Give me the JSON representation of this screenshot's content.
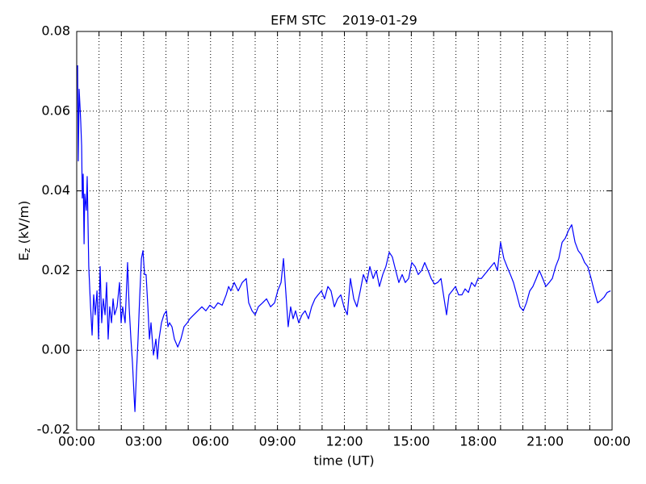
{
  "chart_data": {
    "type": "line",
    "title": "EFM STC    2019-01-29",
    "xlabel": "time (UT)",
    "ylabel": {
      "base": "E",
      "subscript": "z",
      "rest": " (kV/m)"
    },
    "color": "#0000ff",
    "grid": true,
    "xlim": [
      0,
      24
    ],
    "ylim": [
      -0.02,
      0.08
    ],
    "yticks": [
      -0.02,
      {
        "value": 0,
        "label": "0.00"
      },
      0.02,
      0.04,
      0.06,
      0.08
    ],
    "xticks": [
      {
        "value": 0,
        "label": "00:00"
      },
      {
        "value": 1,
        "label": null
      },
      {
        "value": 2,
        "label": null
      },
      {
        "value": 3,
        "label": "03:00"
      },
      {
        "value": 4,
        "label": null
      },
      {
        "value": 5,
        "label": null
      },
      {
        "value": 6,
        "label": "06:00"
      },
      {
        "value": 7,
        "label": null
      },
      {
        "value": 8,
        "label": null
      },
      {
        "value": 9,
        "label": "09:00"
      },
      {
        "value": 10,
        "label": null
      },
      {
        "value": 11,
        "label": null
      },
      {
        "value": 12,
        "label": "12:00"
      },
      {
        "value": 13,
        "label": null
      },
      {
        "value": 14,
        "label": null
      },
      {
        "value": 15,
        "label": "15:00"
      },
      {
        "value": 16,
        "label": null
      },
      {
        "value": 17,
        "label": null
      },
      {
        "value": 18,
        "label": "18:00"
      },
      {
        "value": 19,
        "label": null
      },
      {
        "value": 20,
        "label": null
      },
      {
        "value": 21,
        "label": "21:00"
      },
      {
        "value": 22,
        "label": null
      },
      {
        "value": 23,
        "label": null
      },
      {
        "value": 24,
        "label": "00:00"
      }
    ],
    "x": [
      0.04,
      0.07,
      0.11,
      0.18,
      0.22,
      0.25,
      0.29,
      0.33,
      0.36,
      0.43,
      0.47,
      0.54,
      0.62,
      0.69,
      0.76,
      0.83,
      0.91,
      0.98,
      1.05,
      1.12,
      1.19,
      1.27,
      1.34,
      1.41,
      1.48,
      1.56,
      1.63,
      1.7,
      1.81,
      1.92,
      1.99,
      2.06,
      2.17,
      2.28,
      2.35,
      2.43,
      2.5,
      2.57,
      2.61,
      2.68,
      2.75,
      2.82,
      2.9,
      2.97,
      3.04,
      3.11,
      3.19,
      3.26,
      3.33,
      3.44,
      3.55,
      3.62,
      3.69,
      3.8,
      3.91,
      4.02,
      4.09,
      4.16,
      4.27,
      4.38,
      4.53,
      4.67,
      4.81,
      4.96,
      5.07,
      5.25,
      5.43,
      5.61,
      5.79,
      5.97,
      6.15,
      6.33,
      6.52,
      6.7,
      6.81,
      6.91,
      7.06,
      7.24,
      7.42,
      7.6,
      7.71,
      7.86,
      8.0,
      8.14,
      8.33,
      8.51,
      8.69,
      8.87,
      9.01,
      9.16,
      9.27,
      9.37,
      9.48,
      9.59,
      9.7,
      9.81,
      9.95,
      10.1,
      10.24,
      10.39,
      10.53,
      10.68,
      10.82,
      10.97,
      11.11,
      11.26,
      11.4,
      11.55,
      11.69,
      11.84,
      11.98,
      12.13,
      12.27,
      12.42,
      12.56,
      12.71,
      12.85,
      13.0,
      13.14,
      13.29,
      13.43,
      13.57,
      13.72,
      13.86,
      14.01,
      14.15,
      14.3,
      14.44,
      14.59,
      14.73,
      14.88,
      15.02,
      15.17,
      15.31,
      15.46,
      15.6,
      15.75,
      15.89,
      16.04,
      16.18,
      16.33,
      16.47,
      16.58,
      16.69,
      16.83,
      16.98,
      17.12,
      17.27,
      17.41,
      17.56,
      17.7,
      17.85,
      17.99,
      18.14,
      18.28,
      18.43,
      18.57,
      18.72,
      18.86,
      19.0,
      19.15,
      19.29,
      19.44,
      19.58,
      19.73,
      19.87,
      20.02,
      20.16,
      20.31,
      20.45,
      20.6,
      20.74,
      20.89,
      21.03,
      21.18,
      21.32,
      21.47,
      21.61,
      21.76,
      21.9,
      22.05,
      22.19,
      22.34,
      22.48,
      22.62,
      22.77,
      22.91,
      23.06,
      23.2,
      23.35,
      23.49,
      23.64,
      23.78,
      23.93
    ],
    "values": [
      0.0715,
      0.0475,
      0.0655,
      0.0574,
      0.0513,
      0.0382,
      0.0442,
      0.0267,
      0.0392,
      0.0351,
      0.0436,
      0.021,
      0.0109,
      0.0038,
      0.0139,
      0.0089,
      0.0149,
      0.0028,
      0.021,
      0.0069,
      0.0129,
      0.0089,
      0.017,
      0.0028,
      0.0109,
      0.0069,
      0.0129,
      0.0089,
      0.0109,
      0.017,
      0.0069,
      0.0109,
      0.0069,
      0.022,
      0.0109,
      0.0028,
      -0.0032,
      -0.0113,
      -0.0154,
      -0.0053,
      0.0028,
      0.0129,
      0.023,
      0.025,
      0.019,
      0.019,
      0.0109,
      0.0028,
      0.0069,
      -0.0012,
      0.0028,
      -0.0022,
      0.0028,
      0.0069,
      0.0089,
      0.0099,
      0.0059,
      0.0069,
      0.0059,
      0.0028,
      0.0008,
      0.0028,
      0.0059,
      0.0069,
      0.0079,
      0.0089,
      0.0099,
      0.0109,
      0.0099,
      0.0113,
      0.0105,
      0.0119,
      0.0113,
      0.0139,
      0.016,
      0.0149,
      0.017,
      0.0149,
      0.017,
      0.018,
      0.0119,
      0.0099,
      0.0089,
      0.0109,
      0.0119,
      0.0129,
      0.0109,
      0.0119,
      0.0149,
      0.017,
      0.023,
      0.0149,
      0.0059,
      0.0109,
      0.0079,
      0.0099,
      0.0069,
      0.0089,
      0.0099,
      0.0079,
      0.0109,
      0.0129,
      0.0139,
      0.0149,
      0.0129,
      0.016,
      0.0149,
      0.0109,
      0.0129,
      0.0139,
      0.0109,
      0.0089,
      0.018,
      0.0129,
      0.0109,
      0.0149,
      0.019,
      0.017,
      0.021,
      0.018,
      0.02,
      0.016,
      0.019,
      0.021,
      0.0246,
      0.0234,
      0.02,
      0.017,
      0.019,
      0.017,
      0.018,
      0.022,
      0.021,
      0.019,
      0.02,
      0.022,
      0.02,
      0.018,
      0.0166,
      0.017,
      0.018,
      0.0129,
      0.0089,
      0.0139,
      0.0149,
      0.016,
      0.0139,
      0.0139,
      0.0154,
      0.0145,
      0.017,
      0.016,
      0.018,
      0.018,
      0.019,
      0.02,
      0.021,
      0.022,
      0.02,
      0.0271,
      0.023,
      0.021,
      0.019,
      0.017,
      0.0139,
      0.0109,
      0.0099,
      0.0119,
      0.0149,
      0.016,
      0.018,
      0.02,
      0.018,
      0.016,
      0.017,
      0.018,
      0.021,
      0.023,
      0.0271,
      0.0281,
      0.0301,
      0.0315,
      0.0271,
      0.025,
      0.024,
      0.022,
      0.021,
      0.018,
      0.0149,
      0.0119,
      0.0125,
      0.0133,
      0.0145,
      0.0149
    ]
  }
}
